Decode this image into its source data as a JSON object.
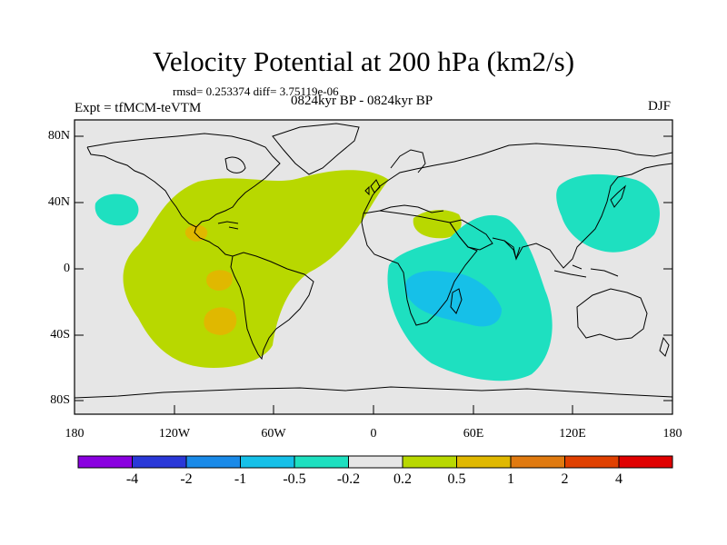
{
  "title": "Velocity Potential at 200 hPa (km2/s)",
  "stats": "rmsd= 0.253374 diff= 3.75119e-06",
  "experiment": "Expt = tfMCM-teVTM",
  "period": "0824kyr BP - 0824kyr BP",
  "season": "DJF",
  "lat_labels": [
    "80N",
    "40N",
    "0",
    "40S",
    "80S"
  ],
  "lon_labels": [
    "180",
    "120W",
    "60W",
    "0",
    "60E",
    "120E",
    "180"
  ],
  "colorbar": {
    "labels": [
      "-4",
      "-2",
      "-1",
      "-0.5",
      "-0.2",
      "0.2",
      "0.5",
      "1",
      "2",
      "4"
    ],
    "colors": [
      "#8a00e0",
      "#2a38d8",
      "#1a8ae8",
      "#16c0e8",
      "#1ee0c0",
      "#e6e6e6",
      "#b8d800",
      "#e0b800",
      "#e07a10",
      "#e04000",
      "#e00000"
    ]
  },
  "chart_data": {
    "type": "filled-contour-map",
    "title": "Velocity Potential at 200 hPa (km2/s)",
    "lat_range": [
      -90,
      90
    ],
    "lon_range": [
      -180,
      180
    ],
    "levels": [
      -4,
      -2,
      -1,
      -0.5,
      -0.2,
      0.2,
      0.5,
      1,
      2,
      4
    ],
    "features": [
      {
        "region": "Atlantic / Americas positive area",
        "range": "0.2 to 0.5"
      },
      {
        "region": "Central America patch",
        "range": "0.5 to 1"
      },
      {
        "region": "East Pacific equatorial patch",
        "range": "0.5 to 1"
      },
      {
        "region": "Southeast Pacific patch",
        "range": "0.5 to 1"
      },
      {
        "region": "North Africa / Arabia patch",
        "range": "0.2 to 0.5"
      },
      {
        "region": "Indian Ocean negative area",
        "range": "-0.5 to -0.2"
      },
      {
        "region": "Madagascar core",
        "range": "-1 to -0.5"
      },
      {
        "region": "Northwest Pacific negative area",
        "range": "-0.5 to -0.2"
      },
      {
        "region": "Central North Pacific negative area",
        "range": "-0.5 to -0.2"
      }
    ]
  }
}
